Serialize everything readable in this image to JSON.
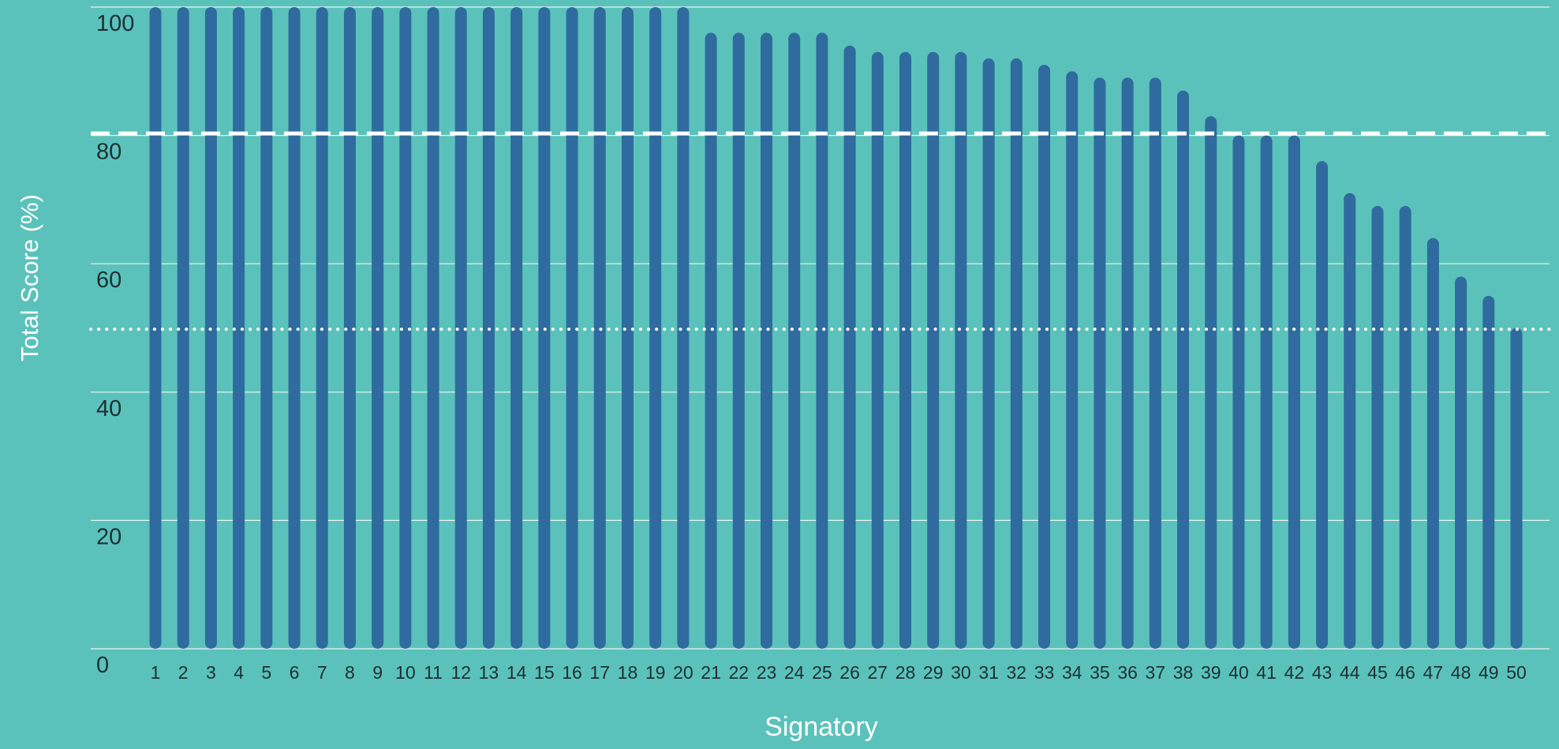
{
  "colors": {
    "background": "#5bc2bb",
    "bar": "#2f6b9e",
    "gridline": "#e8f6f4",
    "reference_line": "#ffffff",
    "tick_text": "#1d2f33",
    "axis_label": "#ffffff"
  },
  "chart_data": {
    "type": "bar",
    "xlabel": "Signatory",
    "ylabel": "Total Score (%)",
    "ylim": [
      0,
      100
    ],
    "yticks": [
      0,
      20,
      40,
      60,
      80,
      100
    ],
    "grid": true,
    "categories": [
      "1",
      "2",
      "3",
      "4",
      "5",
      "6",
      "7",
      "8",
      "9",
      "10",
      "11",
      "12",
      "13",
      "14",
      "15",
      "16",
      "17",
      "18",
      "19",
      "20",
      "21",
      "22",
      "23",
      "24",
      "25",
      "26",
      "27",
      "28",
      "29",
      "30",
      "31",
      "32",
      "33",
      "34",
      "35",
      "36",
      "37",
      "38",
      "39",
      "40",
      "41",
      "42",
      "43",
      "44",
      "45",
      "46",
      "47",
      "48",
      "49",
      "50"
    ],
    "series": [
      {
        "values": [
          100,
          100,
          100,
          100,
          100,
          100,
          100,
          100,
          100,
          100,
          100,
          100,
          100,
          100,
          100,
          100,
          100,
          100,
          100,
          100,
          96,
          96,
          96,
          96,
          96,
          94,
          93,
          93,
          93,
          93,
          92,
          92,
          91,
          90,
          89,
          89,
          89,
          87,
          83,
          80,
          80,
          80,
          76,
          71,
          69,
          69,
          64,
          58,
          55,
          50
        ]
      }
    ],
    "reference_lines": [
      {
        "value": 80.3,
        "style": "dashed"
      },
      {
        "value": 49.8,
        "style": "dotted"
      }
    ]
  }
}
